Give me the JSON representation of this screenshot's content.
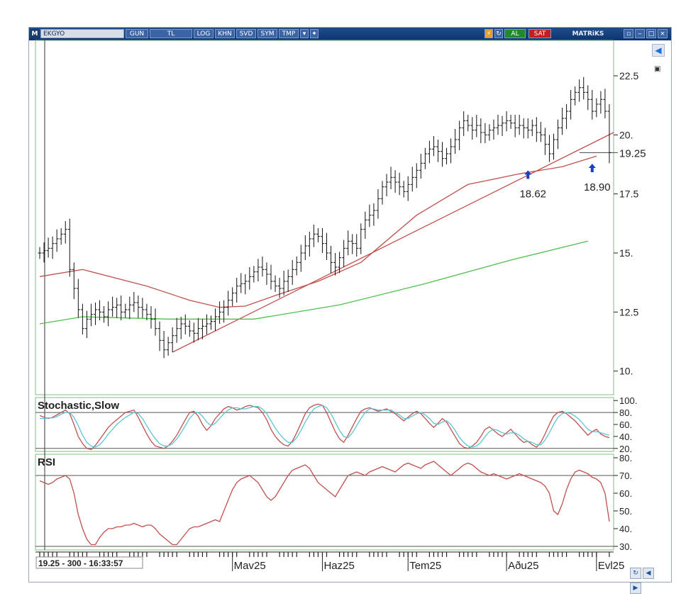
{
  "toolbar": {
    "logo": "M",
    "symbol": "EKGYO",
    "buttons": [
      "GUN",
      "TL",
      "LOG",
      "KHN",
      "SVD",
      "SYM",
      "TMP"
    ],
    "buy_label": "AL",
    "sell_label": "SAT",
    "brand": "MATRiKS",
    "colors": {
      "bar": "#0d3570",
      "buy": "#1f8a2a",
      "sell": "#c21f1f"
    }
  },
  "status_readout": "19.25 - 300 - 16:33:57",
  "chart_data": [
    {
      "type": "line",
      "panel": "price",
      "style": "ohlc-bars",
      "ylim": [
        9,
        24
      ],
      "yticks": [
        "22.5",
        "20.",
        "17.5",
        "15.",
        "12.5",
        "10."
      ],
      "ytick_values": [
        22.5,
        20,
        17.5,
        15,
        12.5,
        10
      ],
      "last_price_label": "19.25",
      "last_price": 19.25,
      "xtick_labels": [
        "Mav25",
        "Haz25",
        "Tem25",
        "Aðu25",
        "Evl25"
      ],
      "xtick_index": [
        45,
        66,
        86,
        109,
        130
      ],
      "bar_count": 134,
      "close": [
        15.0,
        15.1,
        15.2,
        15.4,
        15.6,
        15.8,
        16.0,
        14.3,
        13.5,
        12.6,
        11.8,
        12.2,
        12.4,
        12.6,
        12.5,
        12.3,
        12.6,
        12.7,
        12.8,
        12.5,
        12.6,
        12.8,
        12.9,
        12.7,
        12.6,
        12.4,
        12.2,
        11.8,
        11.3,
        10.9,
        11.2,
        11.5,
        11.8,
        12.0,
        11.9,
        11.7,
        11.6,
        11.8,
        11.9,
        12.0,
        12.1,
        12.3,
        12.5,
        12.7,
        13.0,
        13.3,
        13.6,
        13.7,
        13.8,
        14.0,
        14.2,
        14.4,
        14.3,
        14.1,
        13.8,
        13.6,
        13.5,
        13.8,
        14.0,
        14.3,
        14.6,
        15.0,
        15.3,
        15.6,
        15.8,
        15.7,
        15.4,
        15.0,
        14.6,
        14.4,
        14.8,
        15.2,
        15.5,
        15.4,
        15.2,
        16.0,
        16.4,
        16.6,
        16.8,
        17.3,
        17.8,
        18.0,
        18.2,
        18.0,
        17.8,
        17.6,
        17.9,
        18.2,
        18.5,
        18.8,
        19.2,
        19.4,
        19.5,
        19.3,
        19.0,
        19.2,
        19.5,
        19.8,
        20.3,
        20.6,
        20.4,
        20.2,
        20.4,
        20.1,
        20.0,
        20.2,
        20.3,
        20.4,
        20.5,
        20.6,
        20.5,
        20.3,
        20.4,
        20.3,
        20.2,
        20.4,
        20.1,
        20.0,
        19.6,
        19.2,
        19.8,
        20.3,
        20.7,
        21.0,
        21.5,
        21.8,
        22.0,
        21.8,
        21.5,
        21.0,
        21.3,
        21.5,
        21.0,
        19.25
      ],
      "overlays": [
        {
          "kind": "ma-short",
          "color": "#c0504d",
          "points": [
            [
              0,
              14.0
            ],
            [
              10,
              14.3
            ],
            [
              25,
              13.6
            ],
            [
              35,
              13.0
            ],
            [
              42,
              12.7
            ],
            [
              48,
              12.75
            ],
            [
              55,
              13.2
            ],
            [
              65,
              13.8
            ],
            [
              75,
              14.6
            ],
            [
              88,
              16.6
            ],
            [
              100,
              17.9
            ],
            [
              112,
              18.35
            ],
            [
              122,
              18.65
            ],
            [
              130,
              19.1
            ]
          ]
        },
        {
          "kind": "trendline",
          "color": "#c0504d",
          "points": [
            [
              31,
              10.8
            ],
            [
              134,
              20.1
            ]
          ]
        },
        {
          "kind": "ma-long",
          "color": "#4fbf4f",
          "points": [
            [
              0,
              12.0
            ],
            [
              10,
              12.3
            ],
            [
              30,
              12.2
            ],
            [
              50,
              12.2
            ],
            [
              70,
              12.8
            ],
            [
              90,
              13.7
            ],
            [
              110,
              14.7
            ],
            [
              128,
              15.5
            ]
          ]
        }
      ],
      "annotations": [
        {
          "text": "18.62",
          "x": 114,
          "y": 18.62
        },
        {
          "text": "18.90",
          "x": 129,
          "y": 18.9
        }
      ]
    },
    {
      "type": "line",
      "panel": "stochastic",
      "title": "Stochastic,Slow",
      "ylim": [
        15,
        105
      ],
      "yticks": [
        "100.",
        "80.",
        "60.",
        "40.",
        "20."
      ],
      "ytick_values": [
        100,
        80,
        60,
        40,
        20
      ],
      "bands": [
        80,
        20
      ],
      "series": [
        {
          "color": "#c0504d",
          "values": [
            75,
            72,
            70,
            72,
            76,
            80,
            84,
            78,
            60,
            40,
            28,
            20,
            18,
            25,
            35,
            45,
            55,
            62,
            68,
            74,
            80,
            82,
            84,
            72,
            58,
            44,
            32,
            24,
            22,
            20,
            24,
            32,
            42,
            55,
            68,
            80,
            82,
            74,
            60,
            50,
            58,
            70,
            78,
            86,
            90,
            88,
            84,
            86,
            90,
            92,
            90,
            88,
            80,
            68,
            52,
            40,
            32,
            26,
            24,
            32,
            46,
            62,
            78,
            88,
            92,
            94,
            92,
            80,
            64,
            48,
            36,
            30,
            42,
            56,
            70,
            82,
            86,
            88,
            85,
            82,
            84,
            86,
            82,
            78,
            72,
            66,
            72,
            78,
            82,
            78,
            70,
            62,
            55,
            62,
            70,
            64,
            52,
            40,
            28,
            22,
            20,
            24,
            30,
            40,
            52,
            56,
            50,
            44,
            40,
            46,
            52,
            44,
            36,
            30,
            32,
            26,
            22,
            30,
            44,
            60,
            74,
            80,
            82,
            78,
            72,
            66,
            58,
            50,
            42,
            48,
            52,
            44,
            40,
            38
          ]
        },
        {
          "color": "#5cc6d6",
          "values": [
            70,
            70,
            71,
            71,
            73,
            77,
            80,
            80,
            72,
            58,
            42,
            30,
            24,
            22,
            26,
            34,
            44,
            52,
            60,
            66,
            72,
            76,
            80,
            78,
            70,
            58,
            46,
            36,
            28,
            24,
            24,
            28,
            36,
            46,
            58,
            70,
            78,
            80,
            74,
            64,
            58,
            62,
            70,
            78,
            84,
            88,
            88,
            86,
            86,
            88,
            90,
            90,
            86,
            78,
            66,
            54,
            44,
            36,
            30,
            30,
            38,
            50,
            64,
            76,
            86,
            90,
            92,
            88,
            78,
            64,
            50,
            40,
            38,
            46,
            58,
            70,
            80,
            86,
            86,
            84,
            84,
            84,
            84,
            80,
            76,
            70,
            70,
            74,
            78,
            80,
            76,
            70,
            62,
            60,
            64,
            66,
            60,
            50,
            38,
            30,
            24,
            22,
            24,
            30,
            40,
            48,
            52,
            50,
            46,
            44,
            46,
            46,
            42,
            36,
            32,
            30,
            26,
            26,
            34,
            46,
            60,
            72,
            78,
            80,
            78,
            74,
            68,
            60,
            52,
            48,
            48,
            46,
            44,
            42
          ]
        }
      ]
    },
    {
      "type": "line",
      "panel": "rsi",
      "title": "RSI",
      "ylim": [
        28,
        82
      ],
      "yticks": [
        "80.",
        "70.",
        "60.",
        "50.",
        "40.",
        "30."
      ],
      "ytick_values": [
        80,
        70,
        60,
        50,
        40,
        30
      ],
      "bands": [
        70,
        30
      ],
      "series": [
        {
          "color": "#c0504d",
          "values": [
            67,
            66,
            65,
            66,
            68,
            69,
            70,
            68,
            60,
            48,
            40,
            34,
            31,
            31,
            35,
            38,
            40,
            40,
            41,
            41,
            42,
            42,
            43,
            42,
            41,
            42,
            42,
            40,
            37,
            35,
            33,
            31,
            31,
            34,
            37,
            40,
            41,
            41,
            42,
            43,
            44,
            45,
            44,
            50,
            56,
            62,
            66,
            68,
            69,
            70,
            68,
            66,
            62,
            58,
            56,
            58,
            62,
            66,
            70,
            73,
            74,
            75,
            76,
            74,
            70,
            66,
            64,
            62,
            60,
            58,
            62,
            66,
            70,
            71,
            72,
            71,
            70,
            72,
            73,
            74,
            75,
            74,
            73,
            72,
            74,
            76,
            77,
            76,
            75,
            74,
            76,
            77,
            78,
            76,
            74,
            72,
            70,
            72,
            74,
            76,
            77,
            76,
            74,
            72,
            71,
            70,
            71,
            70,
            69,
            68,
            69,
            70,
            71,
            70,
            69,
            68,
            67,
            66,
            64,
            60,
            50,
            48,
            54,
            62,
            68,
            72,
            73,
            72,
            71,
            69,
            68,
            66,
            60,
            44
          ]
        }
      ]
    }
  ]
}
